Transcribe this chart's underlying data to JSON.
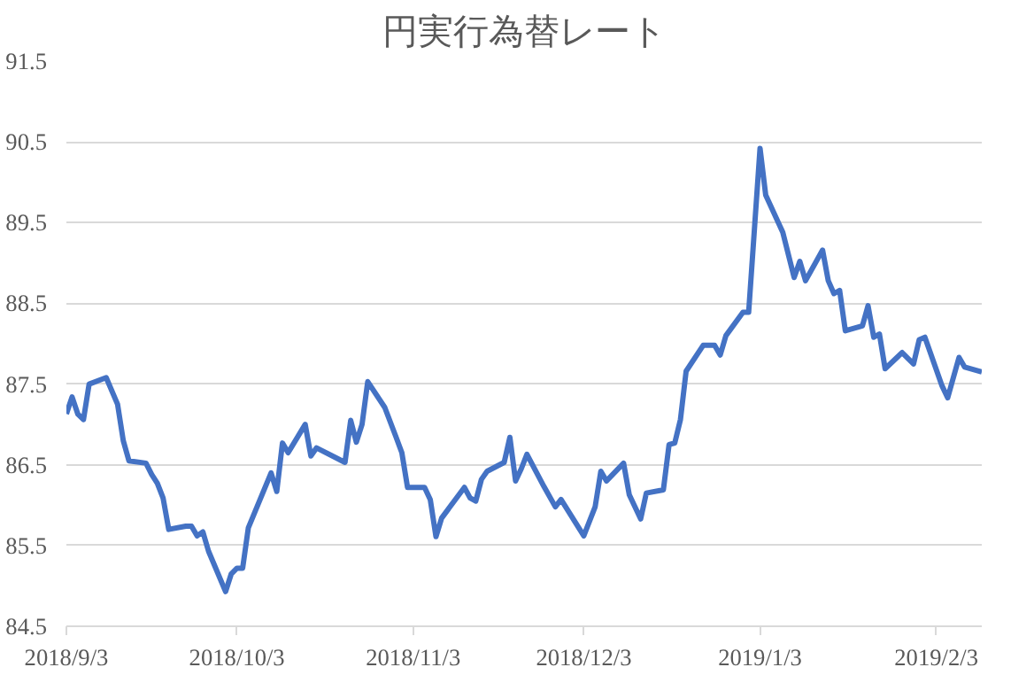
{
  "chart_data": {
    "type": "line",
    "title": "円実行為替レート",
    "x": [
      "2018-09-03",
      "2018-09-04",
      "2018-09-05",
      "2018-09-06",
      "2018-09-07",
      "2018-09-10",
      "2018-09-12",
      "2018-09-13",
      "2018-09-14",
      "2018-09-17",
      "2018-09-18",
      "2018-09-19",
      "2018-09-20",
      "2018-09-21",
      "2018-09-24",
      "2018-09-25",
      "2018-09-26",
      "2018-09-27",
      "2018-09-28",
      "2018-10-01",
      "2018-10-02",
      "2018-10-03",
      "2018-10-04",
      "2018-10-05",
      "2018-10-09",
      "2018-10-10",
      "2018-10-11",
      "2018-10-12",
      "2018-10-15",
      "2018-10-16",
      "2018-10-17",
      "2018-10-22",
      "2018-10-23",
      "2018-10-24",
      "2018-10-25",
      "2018-10-26",
      "2018-10-29",
      "2018-10-31",
      "2018-11-01",
      "2018-11-02",
      "2018-11-05",
      "2018-11-06",
      "2018-11-07",
      "2018-11-08",
      "2018-11-12",
      "2018-11-13",
      "2018-11-14",
      "2018-11-15",
      "2018-11-16",
      "2018-11-19",
      "2018-11-20",
      "2018-11-21",
      "2018-11-22",
      "2018-11-23",
      "2018-11-26",
      "2018-11-28",
      "2018-11-29",
      "2018-12-03",
      "2018-12-05",
      "2018-12-06",
      "2018-12-07",
      "2018-12-10",
      "2018-12-11",
      "2018-12-13",
      "2018-12-14",
      "2018-12-17",
      "2018-12-18",
      "2018-12-19",
      "2018-12-20",
      "2018-12-21",
      "2018-12-24",
      "2018-12-26",
      "2018-12-27",
      "2018-12-28",
      "2018-12-31",
      "2019-01-01",
      "2019-01-03",
      "2019-01-04",
      "2019-01-07",
      "2019-01-09",
      "2019-01-10",
      "2019-01-11",
      "2019-01-14",
      "2019-01-15",
      "2019-01-16",
      "2019-01-17",
      "2019-01-18",
      "2019-01-21",
      "2019-01-22",
      "2019-01-23",
      "2019-01-24",
      "2019-01-25",
      "2019-01-28",
      "2019-01-30",
      "2019-01-31",
      "2019-02-01",
      "2019-02-04",
      "2019-02-05",
      "2019-02-07",
      "2019-02-08",
      "2019-02-11"
    ],
    "series": [
      {
        "color": "#4472c4",
        "values": [
          87.13,
          87.34,
          87.13,
          87.06,
          87.5,
          87.58,
          87.25,
          86.8,
          86.55,
          86.52,
          86.38,
          86.27,
          86.09,
          85.7,
          85.74,
          85.74,
          85.62,
          85.67,
          85.43,
          84.93,
          85.15,
          85.22,
          85.22,
          85.72,
          86.4,
          86.17,
          86.77,
          86.65,
          87.0,
          86.61,
          86.71,
          86.53,
          87.05,
          86.78,
          87.0,
          87.53,
          87.21,
          86.84,
          86.65,
          86.22,
          86.22,
          86.07,
          85.61,
          85.84,
          86.22,
          86.09,
          86.05,
          86.32,
          86.42,
          86.53,
          86.84,
          86.3,
          86.45,
          86.63,
          86.23,
          85.98,
          86.07,
          85.62,
          85.98,
          86.42,
          86.3,
          86.52,
          86.13,
          85.83,
          86.15,
          86.19,
          86.75,
          86.77,
          87.06,
          87.66,
          87.98,
          87.98,
          87.86,
          88.1,
          88.39,
          88.39,
          90.42,
          89.84,
          89.38,
          88.82,
          89.02,
          88.78,
          89.16,
          88.78,
          88.62,
          88.66,
          88.16,
          88.22,
          88.47,
          88.08,
          88.12,
          87.69,
          87.89,
          87.75,
          88.05,
          88.08,
          87.48,
          87.33,
          87.83,
          87.71,
          87.65
        ]
      }
    ],
    "xlim": [
      "2018-09-03",
      "2019-02-11"
    ],
    "xticks": [
      {
        "value": "2018-09-03",
        "label": "2018/9/3"
      },
      {
        "value": "2018-10-03",
        "label": "2018/10/3"
      },
      {
        "value": "2018-11-03",
        "label": "2018/11/3"
      },
      {
        "value": "2018-12-03",
        "label": "2018/12/3"
      },
      {
        "value": "2019-01-03",
        "label": "2019/1/3"
      },
      {
        "value": "2019-02-03",
        "label": "2019/2/3"
      }
    ],
    "ylim": [
      84.5,
      91.5
    ],
    "yticks": [
      84.5,
      85.5,
      86.5,
      87.5,
      88.5,
      89.5,
      90.5,
      91.5
    ],
    "grid": "y",
    "marker": "none",
    "line_style": "solid"
  }
}
